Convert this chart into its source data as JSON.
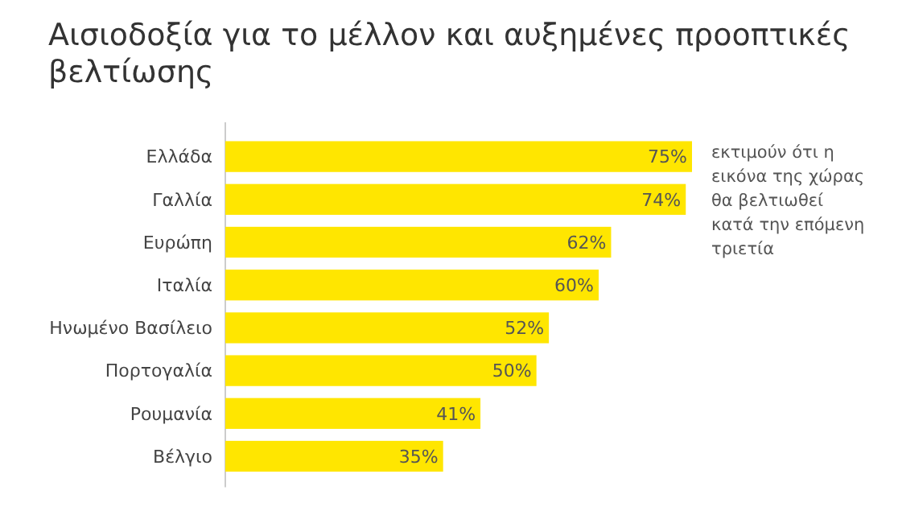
{
  "chart_data": {
    "type": "bar",
    "orientation": "horizontal",
    "title": "Αισιοδοξία για το μέλλον και αυξημένες προοπτικές\nβελτίωσης",
    "categories": [
      "Ελλάδα",
      "Γαλλία",
      "Ευρώπη",
      "Ιταλία",
      "Ηνωμένο Βασίλειο",
      "Πορτογαλία",
      "Ρουμανία",
      "Βέλγιο"
    ],
    "values": [
      75,
      74,
      62,
      60,
      52,
      50,
      41,
      35
    ],
    "value_labels": [
      "75%",
      "74%",
      "62%",
      "60%",
      "52%",
      "50%",
      "41%",
      "35%"
    ],
    "color": "#ffe600",
    "annotations": [
      "εκτιμούν ότι η\nεικόνα της χώρας\nθα βελτιωθεί\nκατά την επόμενη\nτριετία"
    ]
  }
}
